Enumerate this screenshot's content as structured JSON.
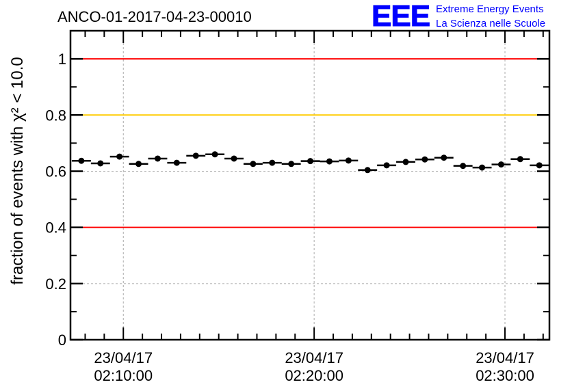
{
  "chart_data": {
    "type": "scatter",
    "title": "ANCO-01-2017-04-23-00010",
    "ylabel": "fraction of events with χ² < 10.0",
    "xlabel": "",
    "ylim": [
      0,
      1.1
    ],
    "xlim_minutes_after_0200": [
      7.23,
      32.33
    ],
    "yticks": [
      0,
      0.2,
      0.4,
      0.6,
      0.8,
      1
    ],
    "ytick_labels": [
      "0",
      "0.2",
      "0.4",
      "0.6",
      "0.8",
      "1"
    ],
    "xticks_minutes": [
      10,
      20,
      30
    ],
    "xtick_labels": [
      [
        "23/04/17",
        "02:10:00"
      ],
      [
        "23/04/17",
        "02:20:00"
      ],
      [
        "23/04/17",
        "02:30:00"
      ]
    ],
    "grid": true,
    "reference_lines": [
      {
        "y": 1.0,
        "color": "#ff0000"
      },
      {
        "y": 0.8,
        "color": "#ffcc00"
      },
      {
        "y": 0.4,
        "color": "#ff0000"
      }
    ],
    "bin_width_minutes": 1.0,
    "x_minutes": [
      7.8,
      8.8,
      9.8,
      10.8,
      11.8,
      12.8,
      13.8,
      14.8,
      15.8,
      16.8,
      17.8,
      18.8,
      19.8,
      20.8,
      21.8,
      22.8,
      23.8,
      24.8,
      25.8,
      26.8,
      27.8,
      28.8,
      29.8,
      30.8,
      31.8
    ],
    "values": [
      0.637,
      0.628,
      0.652,
      0.626,
      0.645,
      0.63,
      0.655,
      0.66,
      0.645,
      0.626,
      0.63,
      0.626,
      0.636,
      0.635,
      0.638,
      0.604,
      0.621,
      0.633,
      0.642,
      0.648,
      0.619,
      0.613,
      0.624,
      0.643,
      0.621
    ]
  },
  "logo": {
    "letters": "EEE",
    "line1": "Extreme Energy Events",
    "line2": "La Scienza nelle Scuole",
    "color": "#0000ff"
  }
}
